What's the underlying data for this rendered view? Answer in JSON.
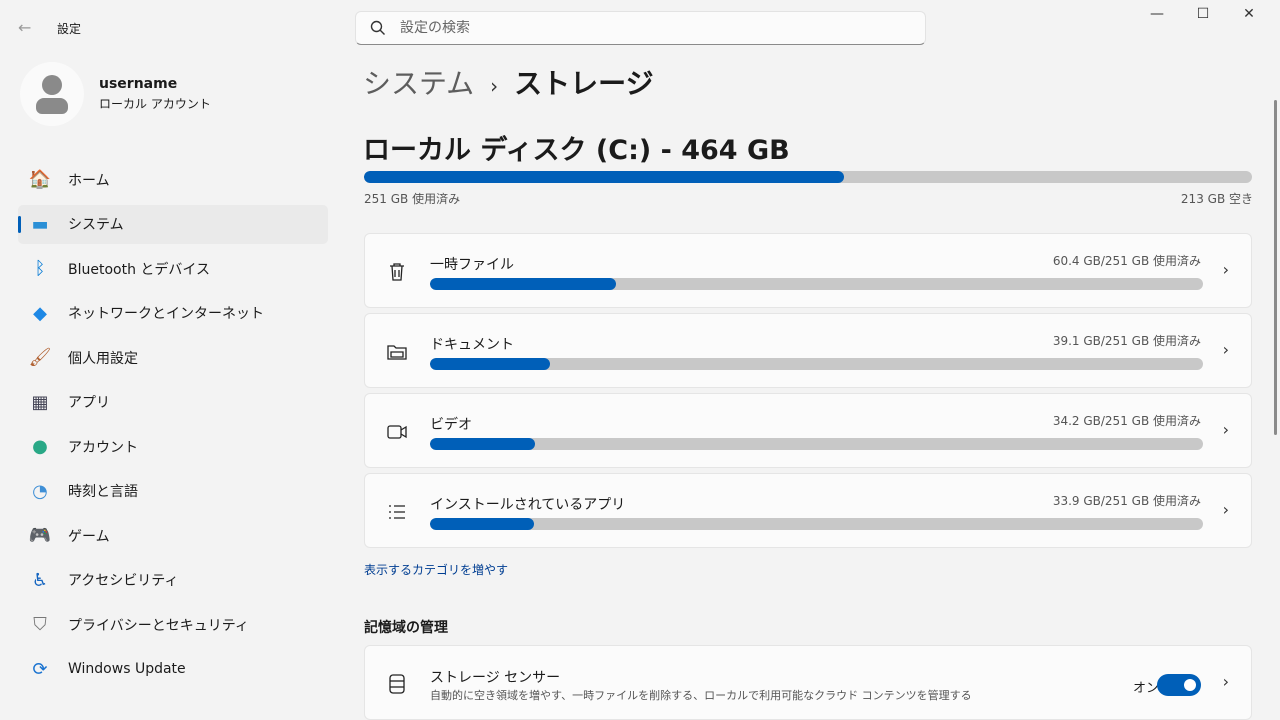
{
  "app": {
    "title": "設定",
    "back_icon": "arrow-left-icon"
  },
  "search": {
    "placeholder": "設定の検索"
  },
  "window": {
    "minimize": "—",
    "maximize": "☐",
    "close": "✕"
  },
  "profile": {
    "name": "username",
    "account_type": "ローカル アカウント"
  },
  "sidebar": {
    "items": [
      {
        "label": "ホーム",
        "icon": "home-icon"
      },
      {
        "label": "システム",
        "icon": "system-icon",
        "selected": true
      },
      {
        "label": "Bluetooth とデバイス",
        "icon": "bluetooth-icon"
      },
      {
        "label": "ネットワークとインターネット",
        "icon": "wifi-icon"
      },
      {
        "label": "個人用設定",
        "icon": "brush-icon"
      },
      {
        "label": "アプリ",
        "icon": "apps-icon"
      },
      {
        "label": "アカウント",
        "icon": "account-icon"
      },
      {
        "label": "時刻と言語",
        "icon": "clock-globe-icon"
      },
      {
        "label": "ゲーム",
        "icon": "gamepad-icon"
      },
      {
        "label": "アクセシビリティ",
        "icon": "accessibility-icon"
      },
      {
        "label": "プライバシーとセキュリティ",
        "icon": "shield-icon"
      },
      {
        "label": "Windows Update",
        "icon": "update-icon"
      }
    ]
  },
  "breadcrumb": {
    "parent": "システム",
    "current": "ストレージ"
  },
  "disk": {
    "title": "ローカル ディスク (C:) - 464 GB",
    "used_label": "251 GB 使用済み",
    "free_label": "213 GB 空き",
    "used_gb": 251,
    "total_gb": 464
  },
  "categories": [
    {
      "label": "一時ファイル",
      "amount": "60.4 GB/251 GB 使用済み",
      "value": 60.4,
      "icon": "trash-icon"
    },
    {
      "label": "ドキュメント",
      "amount": "39.1 GB/251 GB 使用済み",
      "value": 39.1,
      "icon": "folder-icon"
    },
    {
      "label": "ビデオ",
      "amount": "34.2 GB/251 GB 使用済み",
      "value": 34.2,
      "icon": "video-icon"
    },
    {
      "label": "インストールされているアプリ",
      "amount": "33.9 GB/251 GB 使用済み",
      "value": 33.9,
      "icon": "list-icon"
    }
  ],
  "more_link": "表示するカテゴリを増やす",
  "management": {
    "heading": "記憶域の管理",
    "storage_sense": {
      "label": "ストレージ センサー",
      "description": "自動的に空き領域を増やす、一時ファイルを削除する、ローカルで利用可能なクラウド コンテンツを管理する",
      "state": "オン",
      "on": true
    }
  },
  "colors": {
    "accent": "#005fb8",
    "track": "#c8c8c8"
  }
}
